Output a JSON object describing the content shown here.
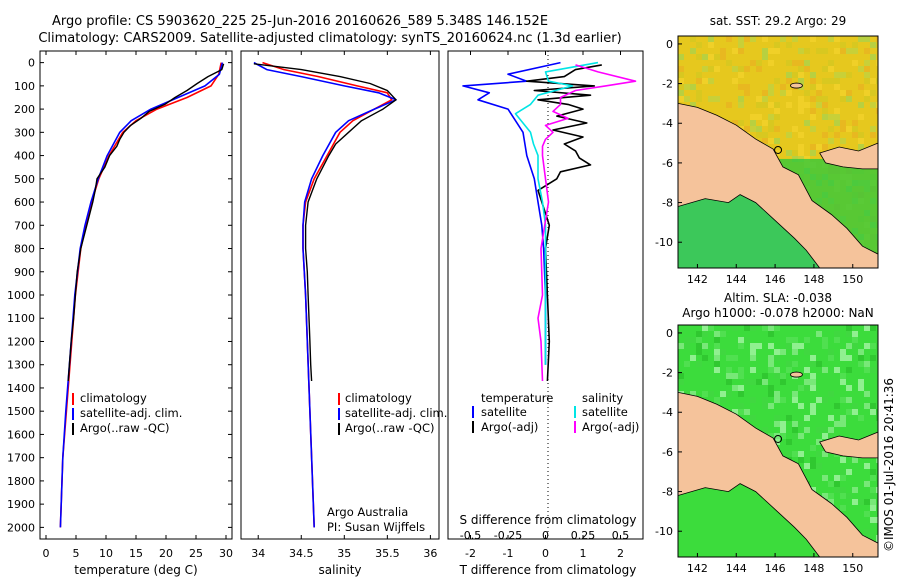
{
  "figure": {
    "title_line1": "Argo profile: CS 5903620_225 25-Jun-2016 20160626_589 5.348S 146.152E",
    "title_line2": "Climatology: CARS2009. Satellite-adjusted climatology: synTS_20160624.nc (1.3d earlier)",
    "credit": "©IMOS 01-Jul-2016 20:41:36"
  },
  "colors": {
    "climatology": "#ff0000",
    "satellite": "#0000ff",
    "argo": "#000000",
    "salinity_satellite": "#00e5e5",
    "salinity_argo": "#ff00ff",
    "land": "#f5c39b",
    "sst_warm": "#e6c81e",
    "sst_mid": "#aad23c",
    "ocean_green": "#28c83c",
    "sla_green": "#3cdc3c"
  },
  "chart_data": [
    {
      "id": "temperature",
      "type": "line",
      "xlabel": "temperature (deg C)",
      "ylabel": "",
      "xlim": [
        -1,
        31
      ],
      "ylim": [
        2050,
        0
      ],
      "xticks": [
        "0",
        "5",
        "10",
        "15",
        "20",
        "25",
        "30"
      ],
      "xtick_values": [
        0,
        5,
        10,
        15,
        20,
        25,
        30
      ],
      "yticks": [
        "0",
        "100",
        "200",
        "300",
        "400",
        "500",
        "600",
        "700",
        "800",
        "900",
        "1000",
        "1100",
        "1200",
        "1300",
        "1400",
        "1500",
        "1600",
        "1700",
        "1800",
        "1900",
        "2000"
      ],
      "ytick_values": [
        0,
        100,
        200,
        300,
        400,
        500,
        600,
        700,
        800,
        900,
        1000,
        1100,
        1200,
        1300,
        1400,
        1500,
        1600,
        1700,
        1800,
        1900,
        2000
      ],
      "legend": [
        "climatology",
        "satellite-adj. clim.",
        "Argo(..raw -QC)"
      ],
      "series": [
        {
          "name": "climatology",
          "depth": [
            0,
            50,
            100,
            150,
            200,
            250,
            300,
            400,
            500,
            600,
            700,
            800,
            1000,
            1200,
            1500,
            1700,
            2000
          ],
          "values": [
            29.2,
            28.8,
            27.5,
            23.5,
            18.5,
            15.0,
            12.8,
            10.5,
            8.8,
            7.6,
            6.6,
            5.8,
            4.9,
            4.3,
            3.4,
            2.8,
            2.4
          ]
        },
        {
          "name": "satellite-adj. clim.",
          "depth": [
            0,
            50,
            100,
            150,
            200,
            250,
            300,
            400,
            500,
            600,
            700,
            800,
            1000,
            1200,
            1500,
            1700,
            2000
          ],
          "values": [
            29.4,
            28.9,
            26.5,
            22.0,
            17.5,
            14.2,
            12.3,
            10.2,
            8.7,
            7.5,
            6.5,
            5.7,
            4.8,
            4.2,
            3.3,
            2.8,
            2.4
          ]
        },
        {
          "name": "Argo(..raw -QC)",
          "depth": [
            5,
            30,
            60,
            90,
            120,
            150,
            180,
            210,
            240,
            270,
            300,
            330,
            360,
            400,
            450,
            500,
            550,
            600,
            700,
            800,
            900,
            1000,
            1100,
            1200,
            1300,
            1370
          ],
          "values": [
            29.6,
            29.3,
            27.0,
            25.2,
            23.5,
            21.5,
            19.8,
            17.2,
            15.8,
            14.1,
            13.0,
            12.3,
            11.8,
            10.6,
            9.8,
            8.5,
            8.2,
            7.8,
            6.8,
            5.8,
            5.2,
            4.9,
            4.6,
            4.2,
            3.9,
            3.7
          ]
        }
      ]
    },
    {
      "id": "salinity",
      "type": "line",
      "xlabel": "salinity",
      "ylabel": "",
      "xlim": [
        33.8,
        36.1
      ],
      "ylim": [
        2050,
        0
      ],
      "xticks": [
        "34",
        "34.5",
        "35",
        "35.5",
        "36"
      ],
      "xtick_values": [
        34,
        34.5,
        35,
        35.5,
        36
      ],
      "legend": [
        "climatology",
        "satellite-adj. clim.",
        "Argo(..raw -QC)"
      ],
      "annotation_line1": "Argo Australia",
      "annotation_line2": "PI: Susan Wijffels",
      "series": [
        {
          "name": "climatology",
          "depth": [
            0,
            30,
            60,
            100,
            130,
            160,
            200,
            250,
            300,
            400,
            500,
            600,
            700,
            800,
            1000,
            1500,
            2000
          ],
          "values": [
            34.05,
            34.3,
            34.7,
            35.15,
            35.5,
            35.55,
            35.35,
            35.1,
            34.95,
            34.8,
            34.65,
            34.55,
            34.52,
            34.52,
            34.55,
            34.6,
            34.65
          ]
        },
        {
          "name": "satellite-adj. clim.",
          "depth": [
            0,
            30,
            60,
            100,
            130,
            160,
            200,
            250,
            300,
            400,
            500,
            600,
            700,
            800,
            1000,
            1500,
            2000
          ],
          "values": [
            33.95,
            34.1,
            34.5,
            35.0,
            35.4,
            35.6,
            35.35,
            35.05,
            34.9,
            34.75,
            34.62,
            34.54,
            34.52,
            34.52,
            34.55,
            34.6,
            34.65
          ]
        },
        {
          "name": "Argo(..raw -QC)",
          "depth": [
            5,
            30,
            60,
            90,
            120,
            160,
            200,
            250,
            300,
            350,
            400,
            450,
            500,
            600,
            700,
            800,
            900,
            1000,
            1100,
            1200,
            1300,
            1370
          ],
          "values": [
            33.95,
            34.5,
            34.95,
            35.3,
            35.5,
            35.6,
            35.45,
            35.2,
            35.05,
            34.9,
            34.82,
            34.75,
            34.68,
            34.58,
            34.55,
            34.55,
            34.57,
            34.58,
            34.59,
            34.6,
            34.61,
            34.62
          ]
        }
      ]
    },
    {
      "id": "difference",
      "type": "line",
      "xlabel": "T difference from climatology",
      "xlabel_top": "S difference from climatology",
      "xlim": [
        -2.6,
        2.6
      ],
      "ylim": [
        2050,
        0
      ],
      "xticks_T": [
        "-2",
        "-1",
        "0",
        "1",
        "2"
      ],
      "xtick_values_T": [
        -2,
        -1,
        0,
        1,
        2
      ],
      "xticks_S": [
        "-0.5",
        "-0.25",
        "0",
        "0.25",
        "0.5"
      ],
      "xtick_values_S": [
        -0.5,
        -0.25,
        0,
        0.25,
        0.5
      ],
      "legend_temperature_title": "temperature",
      "legend_salinity_title": "salinity",
      "legend_temperature": [
        "satellite",
        "Argo(-adj)"
      ],
      "legend_salinity": [
        "satellite",
        "Argo(-adj)"
      ],
      "series": [
        {
          "name": "T satellite",
          "depth": [
            0,
            50,
            80,
            100,
            130,
            160,
            200,
            250,
            300,
            400,
            500,
            600,
            700,
            800,
            1000,
            1200,
            1300
          ],
          "values": [
            0.4,
            -1.0,
            -0.5,
            -2.2,
            -1.5,
            -1.8,
            -1.0,
            -0.8,
            -0.6,
            -0.5,
            -0.3,
            -0.2,
            -0.1,
            -0.05,
            0.0,
            0.0,
            0.0
          ]
        },
        {
          "name": "T Argo(-adj)",
          "depth": [
            10,
            30,
            60,
            80,
            100,
            120,
            140,
            160,
            180,
            200,
            230,
            260,
            290,
            320,
            350,
            380,
            410,
            440,
            470,
            500,
            550,
            600,
            700,
            800,
            1000,
            1200,
            1370
          ],
          "values": [
            1.5,
            0.8,
            0.5,
            -0.5,
            1.3,
            -0.3,
            1.2,
            -0.2,
            0.6,
            1.0,
            0.3,
            1.1,
            0.2,
            1.0,
            0.5,
            0.8,
            0.9,
            1.2,
            0.4,
            0.3,
            -0.2,
            -0.1,
            0.1,
            0.0,
            0.05,
            0.1,
            0.05
          ]
        },
        {
          "name": "S satellite",
          "depth": [
            0,
            40,
            80,
            100,
            140,
            180,
            220,
            260,
            300,
            350,
            400,
            500,
            600,
            700,
            800,
            1000,
            1200,
            1300
          ],
          "values": [
            0.35,
            0.0,
            0.02,
            0.18,
            -0.05,
            -0.1,
            -0.2,
            -0.15,
            -0.1,
            -0.08,
            -0.05,
            -0.05,
            -0.02,
            0.0,
            0.0,
            0.0,
            0.0,
            0.0
          ]
        },
        {
          "name": "S Argo(-adj)",
          "depth": [
            10,
            40,
            80,
            100,
            120,
            150,
            180,
            210,
            240,
            270,
            300,
            330,
            360,
            400,
            500,
            600,
            800,
            1000,
            1100,
            1200,
            1370
          ],
          "values": [
            0.2,
            0.35,
            0.6,
            0.4,
            0.2,
            0.1,
            0.1,
            0.05,
            0.15,
            0.0,
            0.05,
            0.0,
            -0.02,
            -0.02,
            0.0,
            0.02,
            -0.03,
            -0.02,
            -0.05,
            -0.03,
            -0.02
          ]
        }
      ]
    },
    {
      "id": "map_sst",
      "type": "heatmap",
      "title": "sat. SST: 29.2 Argo: 29",
      "xticks": [
        "142",
        "144",
        "146",
        "148",
        "150"
      ],
      "xtick_values": [
        142,
        144,
        146,
        148,
        150
      ],
      "yticks": [
        "0",
        "-2",
        "-4",
        "-6",
        "-8",
        "-10"
      ],
      "ytick_values": [
        0,
        -2,
        -4,
        -6,
        -8,
        -10
      ],
      "xlim": [
        141.0,
        151.3
      ],
      "ylim": [
        -11.3,
        0.4
      ],
      "marker": {
        "lon": 146.152,
        "lat": -5.348
      }
    },
    {
      "id": "map_sla",
      "type": "heatmap",
      "title_line1": "Altim. SLA: -0.038",
      "title_line2": "Argo h1000: -0.078 h2000: NaN",
      "xticks": [
        "142",
        "144",
        "146",
        "148",
        "150"
      ],
      "xtick_values": [
        142,
        144,
        146,
        148,
        150
      ],
      "yticks": [
        "0",
        "-2",
        "-4",
        "-6",
        "-8",
        "-10"
      ],
      "ytick_values": [
        0,
        -2,
        -4,
        -6,
        -8,
        -10
      ],
      "xlim": [
        141.0,
        151.3
      ],
      "ylim": [
        -11.3,
        0.4
      ],
      "marker": {
        "lon": 146.152,
        "lat": -5.348
      }
    }
  ]
}
